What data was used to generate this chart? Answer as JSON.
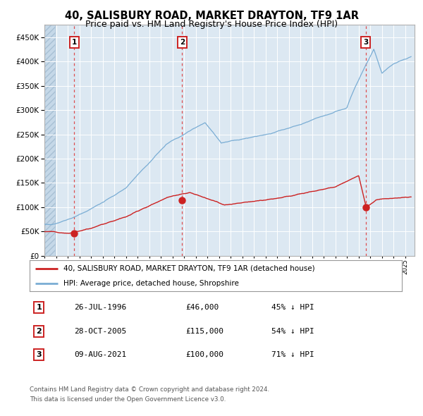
{
  "title_line1": "40, SALISBURY ROAD, MARKET DRAYTON, TF9 1AR",
  "title_line2": "Price paid vs. HM Land Registry's House Price Index (HPI)",
  "hpi_color": "#7aadd4",
  "price_color": "#cc2222",
  "background_plot": "#dce8f2",
  "transactions": [
    {
      "label": "1",
      "date_num": 1996.57,
      "price": 46000,
      "pct": "45% ↓ HPI",
      "date_str": "26-JUL-1996"
    },
    {
      "label": "2",
      "date_num": 2005.83,
      "price": 115000,
      "pct": "54% ↓ HPI",
      "date_str": "28-OCT-2005"
    },
    {
      "label": "3",
      "date_num": 2021.6,
      "price": 100000,
      "pct": "71% ↓ HPI",
      "date_str": "09-AUG-2021"
    }
  ],
  "legend_line1": "40, SALISBURY ROAD, MARKET DRAYTON, TF9 1AR (detached house)",
  "legend_line2": "HPI: Average price, detached house, Shropshire",
  "footnote1": "Contains HM Land Registry data © Crown copyright and database right 2024.",
  "footnote2": "This data is licensed under the Open Government Licence v3.0.",
  "ylim": [
    0,
    475000
  ],
  "yticks": [
    0,
    50000,
    100000,
    150000,
    200000,
    250000,
    300000,
    350000,
    400000,
    450000
  ],
  "xlim_start": 1994.0,
  "xlim_end": 2025.8
}
